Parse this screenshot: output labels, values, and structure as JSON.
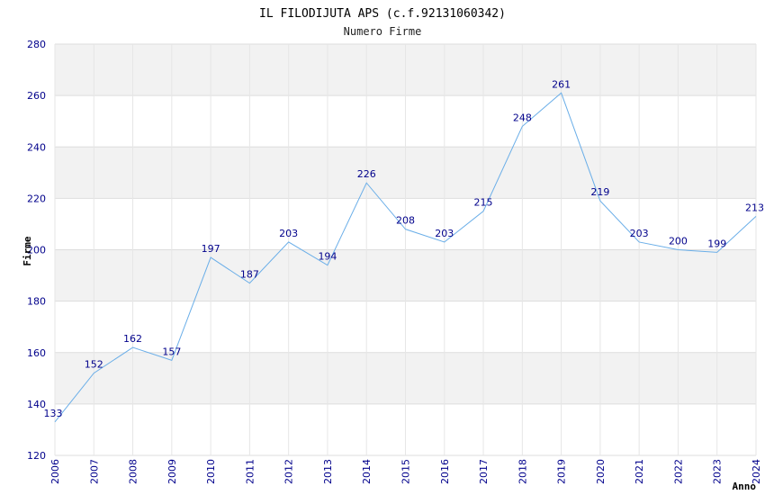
{
  "chart_data": {
    "type": "line",
    "title": "IL FILODIJUTA APS (c.f.92131060342)",
    "subtitle": "Numero Firme",
    "xlabel": "Anno",
    "ylabel": "Firme",
    "x": [
      "2006",
      "2007",
      "2008",
      "2009",
      "2010",
      "2011",
      "2012",
      "2013",
      "2014",
      "2015",
      "2016",
      "2017",
      "2018",
      "2019",
      "2020",
      "2021",
      "2022",
      "2023",
      "2024"
    ],
    "values": [
      133,
      152,
      162,
      157,
      197,
      187,
      203,
      194,
      226,
      208,
      203,
      215,
      248,
      261,
      219,
      203,
      200,
      199,
      213
    ],
    "ylim": [
      120,
      280
    ],
    "yticks": [
      "120",
      "140",
      "160",
      "180",
      "200",
      "220",
      "240",
      "260",
      "280"
    ],
    "grid": true,
    "legend": "none",
    "colors": {
      "line": "#6aaee8",
      "band": "#f2f2f2",
      "tick": "#00008b",
      "gridline": "#dddddd"
    }
  }
}
